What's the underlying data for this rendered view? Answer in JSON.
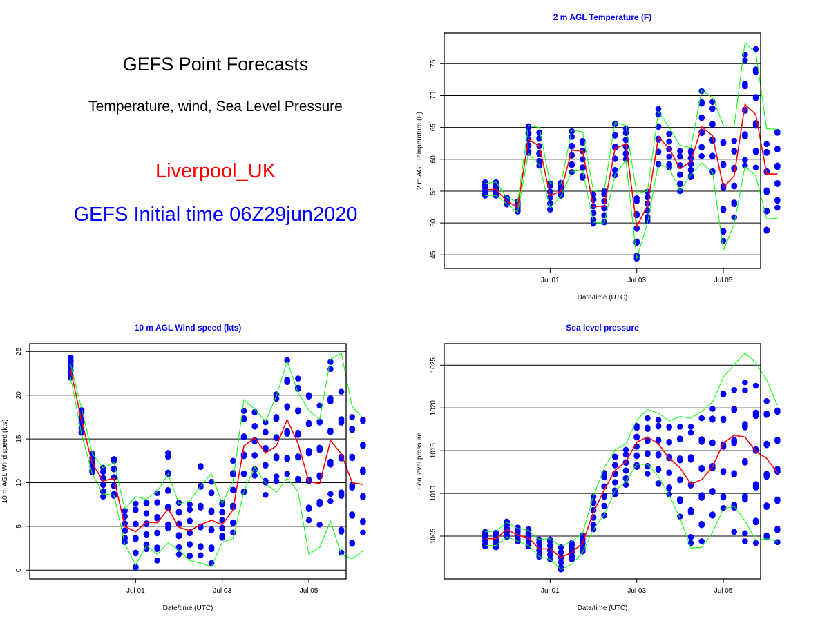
{
  "header": {
    "title": "GEFS Point Forecasts",
    "subtitle": "Temperature, wind, Sea Level Pressure",
    "location": "Liverpool_UK",
    "init_time": "GEFS Initial time 06Z29jun2020"
  },
  "colors": {
    "members": "#0000ff",
    "mean": "#ff0000",
    "envelope": "#00ff00",
    "title": "#0000ff",
    "location": "#ff0000",
    "init_time": "#0000ff"
  },
  "chart_data": [
    {
      "type": "line",
      "title": "2 m AGL Temperature (F)",
      "xlabel": "Date/time (UTC)",
      "ylabel": "2 m AGL Temperature (F)",
      "x_ticks": [
        "Jul 01",
        "Jul 03",
        "Jul 05"
      ],
      "y_ticks": [
        45,
        50,
        55,
        60,
        65,
        70,
        75
      ],
      "ylim": [
        43,
        80
      ],
      "grid": "horizontal",
      "times": [
        "2020-06-29 12Z",
        "2020-06-29 18Z",
        "2020-06-30 00Z",
        "2020-06-30 06Z",
        "2020-06-30 12Z",
        "2020-06-30 18Z",
        "2020-07-01 00Z",
        "2020-07-01 06Z",
        "2020-07-01 12Z",
        "2020-07-01 18Z",
        "2020-07-02 00Z",
        "2020-07-02 06Z",
        "2020-07-02 12Z",
        "2020-07-02 18Z",
        "2020-07-03 00Z",
        "2020-07-03 06Z",
        "2020-07-03 12Z",
        "2020-07-03 18Z",
        "2020-07-04 00Z",
        "2020-07-04 06Z",
        "2020-07-04 12Z",
        "2020-07-04 18Z",
        "2020-07-05 00Z",
        "2020-07-05 06Z",
        "2020-07-05 12Z",
        "2020-07-05 18Z",
        "2020-07-06 00Z",
        "2020-07-06 06Z"
      ],
      "mean": [
        55.2,
        55.3,
        53.4,
        52.5,
        63.1,
        62.1,
        54.3,
        55.0,
        61.4,
        61.3,
        52.6,
        52.6,
        61.7,
        62.4,
        49.4,
        52.8,
        63.5,
        61.7,
        58.5,
        59.7,
        65.1,
        63.7,
        55.6,
        57.4,
        68.6,
        67.0,
        57.7,
        57.7
      ],
      "upper": [
        56.2,
        56.4,
        54.0,
        53.3,
        65.3,
        65.0,
        56.2,
        56.1,
        64.6,
        64.3,
        55.0,
        55.2,
        65.8,
        65.3,
        54.7,
        55.0,
        67.5,
        65.0,
        62.2,
        61.8,
        70.8,
        69.7,
        65.3,
        65.2,
        78.3,
        76.7,
        64.8,
        64.7
      ],
      "lower": [
        54.3,
        54.3,
        53.0,
        51.7,
        60.9,
        59.1,
        52.4,
        54.2,
        58.1,
        58.3,
        50.1,
        50.0,
        57.6,
        59.8,
        44.4,
        50.1,
        59.3,
        58.6,
        55.0,
        57.6,
        59.4,
        58.0,
        45.7,
        49.8,
        58.9,
        57.4,
        50.6,
        50.8
      ],
      "members_range": [
        [
          54.3,
          56.4
        ],
        [
          54.3,
          56.4
        ],
        [
          52.9,
          54.0
        ],
        [
          51.8,
          53.4
        ],
        [
          61.0,
          65.2
        ],
        [
          59.0,
          64.2
        ],
        [
          52.1,
          56.2
        ],
        [
          54.3,
          56.3
        ],
        [
          58.0,
          64.4
        ],
        [
          57.1,
          62.9
        ],
        [
          49.9,
          54.5
        ],
        [
          50.1,
          55.0
        ],
        [
          57.5,
          65.6
        ],
        [
          60.0,
          64.8
        ],
        [
          44.4,
          53.9
        ],
        [
          50.3,
          54.9
        ],
        [
          59.2,
          67.9
        ],
        [
          58.7,
          64.0
        ],
        [
          55.0,
          61.3
        ],
        [
          57.2,
          61.3
        ],
        [
          60.5,
          70.7
        ],
        [
          58.0,
          69.0
        ],
        [
          47.2,
          62.7
        ],
        [
          50.9,
          62.9
        ],
        [
          59.0,
          76.4
        ],
        [
          58.7,
          77.3
        ],
        [
          48.8,
          62.4
        ],
        [
          52.4,
          64.3
        ]
      ]
    },
    {
      "type": "line",
      "title": "10 m AGL Wind speed (kts)",
      "xlabel": "Date/time (UTC)",
      "ylabel": "10 m AGL Wind speed (kts)",
      "x_ticks": [
        "Jul 01",
        "Jul 03",
        "Jul 05"
      ],
      "y_ticks": [
        0,
        5,
        10,
        15,
        20,
        25
      ],
      "ylim": [
        -1,
        26
      ],
      "grid": "horizontal",
      "mean": [
        22.9,
        17.1,
        12.2,
        10.2,
        10.5,
        5.0,
        4.4,
        5.5,
        5.4,
        7.0,
        4.9,
        4.5,
        5.2,
        5.7,
        5.2,
        6.9,
        14.2,
        15.1,
        13.4,
        14.2,
        17.2,
        14.5,
        10.1,
        9.9,
        14.8,
        13.3,
        10.0,
        9.8
      ],
      "upper": [
        23.5,
        18.5,
        13.3,
        11.7,
        12.3,
        7.0,
        8.4,
        8.1,
        9.0,
        11.0,
        7.6,
        7.9,
        9.6,
        11.0,
        7.6,
        10.2,
        19.5,
        18.4,
        17.0,
        19.9,
        23.9,
        20.3,
        18.3,
        17.2,
        24.1,
        24.8,
        18.7,
        17.4
      ],
      "lower": [
        22.0,
        15.6,
        11.0,
        8.7,
        8.6,
        3.0,
        0.6,
        2.8,
        1.8,
        3.1,
        2.3,
        1.1,
        0.8,
        0.4,
        3.2,
        3.6,
        9.0,
        11.8,
        9.9,
        8.9,
        10.5,
        9.0,
        1.8,
        2.6,
        5.6,
        1.8,
        1.3,
        2.2
      ],
      "members_range": [
        [
          22.0,
          24.3
        ],
        [
          15.7,
          18.3
        ],
        [
          11.2,
          13.3
        ],
        [
          8.4,
          11.7
        ],
        [
          8.5,
          12.7
        ],
        [
          3.2,
          6.8
        ],
        [
          0.3,
          7.6
        ],
        [
          2.4,
          7.7
        ],
        [
          1.1,
          8.8
        ],
        [
          4.8,
          13.4
        ],
        [
          1.8,
          7.7
        ],
        [
          1.6,
          7.5
        ],
        [
          1.7,
          11.9
        ],
        [
          0.8,
          10.1
        ],
        [
          3.7,
          7.7
        ],
        [
          4.3,
          12.5
        ],
        [
          8.9,
          18.2
        ],
        [
          10.8,
          18.1
        ],
        [
          8.6,
          16.9
        ],
        [
          10.2,
          20.1
        ],
        [
          11.0,
          24.0
        ],
        [
          10.3,
          21.9
        ],
        [
          5.7,
          20.0
        ],
        [
          5.2,
          18.8
        ],
        [
          7.9,
          23.8
        ],
        [
          2.0,
          20.4
        ],
        [
          3.0,
          17.5
        ],
        [
          4.3,
          17.2
        ]
      ]
    },
    {
      "type": "line",
      "title": "Sea level pressure",
      "xlabel": "Date/time (UTC)",
      "ylabel": "Sea level pressure",
      "x_ticks": [
        "Jul 01",
        "Jul 03",
        "Jul 05"
      ],
      "y_ticks": [
        1005,
        1010,
        1015,
        1020,
        1025
      ],
      "ylim": [
        1000,
        1027.5
      ],
      "grid": "horizontal",
      "mean": [
        1004.7,
        1004.7,
        1005.8,
        1005.1,
        1004.8,
        1003.5,
        1003.5,
        1002.5,
        1003.1,
        1004.2,
        1007.8,
        1010.4,
        1012.7,
        1013.7,
        1016.0,
        1016.6,
        1015.8,
        1014.1,
        1013.0,
        1011.1,
        1011.6,
        1013.1,
        1015.9,
        1016.8,
        1016.6,
        1014.9,
        1014.1,
        1012.4
      ],
      "upper": [
        1005.5,
        1005.6,
        1006.6,
        1005.9,
        1005.7,
        1004.6,
        1004.7,
        1003.8,
        1004.4,
        1005.3,
        1009.7,
        1013.0,
        1015.1,
        1015.8,
        1018.6,
        1019.8,
        1019.4,
        1018.5,
        1019.0,
        1018.8,
        1019.6,
        1020.7,
        1023.6,
        1025.1,
        1026.4,
        1025.3,
        1023.3,
        1020.3
      ],
      "lower": [
        1003.9,
        1003.9,
        1004.9,
        1004.4,
        1003.9,
        1002.6,
        1002.3,
        1001.1,
        1001.7,
        1003.1,
        1005.8,
        1007.5,
        1010.3,
        1011.4,
        1013.4,
        1013.4,
        1012.0,
        1009.8,
        1007.1,
        1003.6,
        1003.7,
        1005.4,
        1008.2,
        1008.5,
        1006.8,
        1004.5,
        1004.7,
        1004.4
      ],
      "members_range": [
        [
          1003.8,
          1005.5
        ],
        [
          1003.7,
          1005.4
        ],
        [
          1004.9,
          1006.7
        ],
        [
          1004.4,
          1006.0
        ],
        [
          1003.8,
          1005.8
        ],
        [
          1002.6,
          1004.6
        ],
        [
          1002.3,
          1004.6
        ],
        [
          1001.1,
          1003.7
        ],
        [
          1002.3,
          1004.2
        ],
        [
          1003.2,
          1005.1
        ],
        [
          1005.8,
          1009.6
        ],
        [
          1007.4,
          1012.4
        ],
        [
          1009.9,
          1014.3
        ],
        [
          1011.0,
          1015.1
        ],
        [
          1013.1,
          1017.9
        ],
        [
          1012.3,
          1018.8
        ],
        [
          1011.1,
          1018.6
        ],
        [
          1009.9,
          1017.8
        ],
        [
          1007.3,
          1017.8
        ],
        [
          1004.2,
          1017.8
        ],
        [
          1004.4,
          1018.8
        ],
        [
          1007.4,
          1019.9
        ],
        [
          1008.3,
          1021.7
        ],
        [
          1005.5,
          1022.1
        ],
        [
          1004.4,
          1023.0
        ],
        [
          1004.2,
          1022.6
        ],
        [
          1004.9,
          1020.8
        ],
        [
          1004.3,
          1019.7
        ]
      ]
    }
  ]
}
